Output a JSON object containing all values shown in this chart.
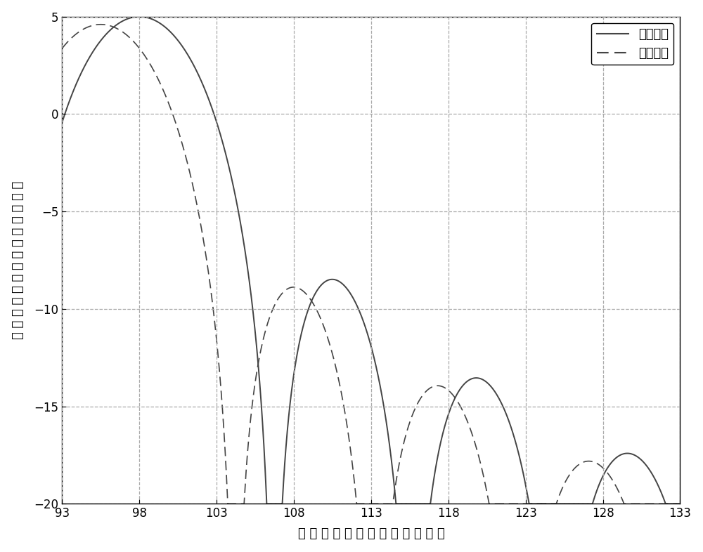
{
  "xlabel": "用户与天线夹角（单位：度）",
  "ylabel": "天线幅度方向图（单位：分贝）",
  "xlim": [
    93,
    133
  ],
  "ylim": [
    -20,
    5
  ],
  "xticks": [
    93,
    98,
    103,
    108,
    113,
    118,
    123,
    128,
    133
  ],
  "yticks": [
    -20,
    -15,
    -10,
    -5,
    0,
    5
  ],
  "grid_color": "#aaaaaa",
  "outer_color": "#444444",
  "inner_color": "#444444",
  "legend_solid": "外环小区",
  "legend_dashed": "内环小区",
  "background_color": "#ffffff",
  "outer_N": 12,
  "outer_d": 0.55,
  "outer_tilt": 98.0,
  "outer_peak": 5.0,
  "outer_elem_bw": 65,
  "inner_N": 12,
  "inner_d": 0.55,
  "inner_tilt": 95.5,
  "inner_peak": 4.6,
  "inner_elem_bw": 65,
  "clip_dB": -20
}
